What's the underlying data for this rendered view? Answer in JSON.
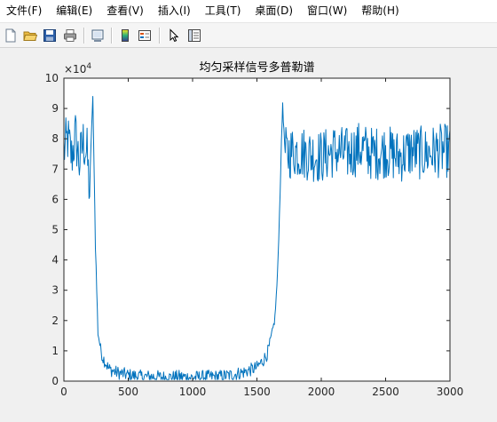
{
  "menubar": {
    "items": [
      {
        "label": "文件(F)"
      },
      {
        "label": "编辑(E)"
      },
      {
        "label": "查看(V)"
      },
      {
        "label": "插入(I)"
      },
      {
        "label": "工具(T)"
      },
      {
        "label": "桌面(D)"
      },
      {
        "label": "窗口(W)"
      },
      {
        "label": "帮助(H)"
      }
    ]
  },
  "toolbar": {
    "buttons": [
      {
        "icon": "new-file-icon"
      },
      {
        "icon": "open-folder-icon"
      },
      {
        "icon": "save-icon"
      },
      {
        "icon": "print-icon"
      },
      {
        "icon": "link-plot-icon"
      },
      {
        "icon": "insert-colorbar-icon"
      },
      {
        "icon": "insert-legend-icon"
      },
      {
        "icon": "pointer-icon"
      },
      {
        "icon": "property-inspector-icon"
      }
    ]
  },
  "colors": {
    "line": "#0072bd",
    "axes_bg": "#ffffff",
    "figure_bg": "#f0f0f0",
    "axis": "#262626"
  },
  "chart_data": {
    "type": "line",
    "title": "均匀采样信号多普勒谱",
    "xlabel": "",
    "ylabel": "",
    "y_exponent_label": "×10",
    "y_exponent_power": "4",
    "xlim": [
      0,
      3000
    ],
    "ylim": [
      0,
      100000
    ],
    "xticks": [
      "0",
      "500",
      "1000",
      "1500",
      "2000",
      "2500",
      "3000"
    ],
    "yticks": [
      "0",
      "1",
      "2",
      "3",
      "4",
      "5",
      "6",
      "7",
      "8",
      "9",
      "10"
    ],
    "grid": false,
    "series": [
      {
        "x": [
          0,
          30,
          60,
          90,
          120,
          150,
          180,
          200,
          215,
          225,
          235,
          245,
          255,
          265,
          280,
          300,
          350,
          400,
          500,
          600,
          700,
          800,
          900,
          1000,
          1100,
          1200,
          1300,
          1400,
          1500,
          1550,
          1580,
          1600,
          1620,
          1640,
          1660,
          1675,
          1690,
          1700,
          1710,
          1720,
          1800,
          1900,
          2000,
          2100,
          2200,
          2300,
          2400,
          2500,
          2600,
          2700,
          2800,
          2900,
          3000
        ],
        "y": [
          76000,
          80000,
          74000,
          81000,
          72000,
          79000,
          75000,
          62000,
          84000,
          93000,
          70000,
          45000,
          30000,
          16000,
          12000,
          8000,
          4000,
          3000,
          2000,
          1500,
          1500,
          1200,
          1500,
          1200,
          1500,
          1500,
          2000,
          3000,
          4500,
          7000,
          9000,
          12000,
          16000,
          21000,
          35000,
          55000,
          78000,
          92000,
          82000,
          75000,
          76000,
          75000,
          74000,
          76000,
          75000,
          77000,
          75000,
          76000,
          74000,
          76000,
          75000,
          76000,
          76000
        ]
      }
    ]
  }
}
